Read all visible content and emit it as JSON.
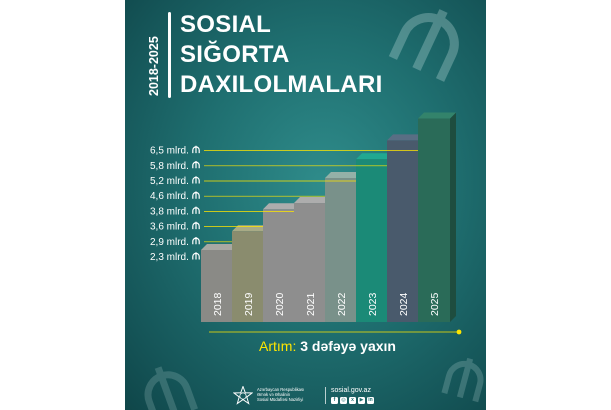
{
  "poster": {
    "years_vertical": "2018-2025",
    "title_lines": [
      "SOSIAL",
      "SIĞORTA",
      "DAXILOLMALARI"
    ]
  },
  "chart_data": {
    "type": "bar",
    "categories": [
      "2018",
      "2019",
      "2020",
      "2021",
      "2022",
      "2023",
      "2024",
      "2025"
    ],
    "values": [
      2.3,
      2.9,
      3.6,
      3.8,
      4.6,
      5.2,
      5.8,
      6.5
    ],
    "value_labels": [
      "2,3 mlrd.",
      "2,9 mlrd.",
      "3,6 mlrd.",
      "3,8 mlrd.",
      "4,6 mlrd.",
      "5,2 mlrd.",
      "5,8 mlrd.",
      "6,5 mlrd."
    ],
    "unit_icon": "manat-icon",
    "colors": [
      "#8a8a86",
      "#8a8c6e",
      "#8e8e8e",
      "#8e8e8e",
      "#79918a",
      "#1b8a77",
      "#495a6c",
      "#2a6b58"
    ],
    "label_color": "#ffffff",
    "leader_color": "#ffe600",
    "title": "",
    "xlabel": "",
    "ylabel": ""
  },
  "growth": {
    "label": "Artım:",
    "value": "3 dəfəyə yaxın"
  },
  "footer": {
    "org_lines": [
      "Azərbaycan Respublikası",
      "Əmək və Əhalinin",
      "Sosial Müdafiəsi Nazirliyi"
    ],
    "website": "sosial.gov.az",
    "social_icons": [
      "facebook-icon",
      "instagram-icon",
      "x-icon",
      "youtube-icon",
      "linkedin-icon"
    ]
  }
}
